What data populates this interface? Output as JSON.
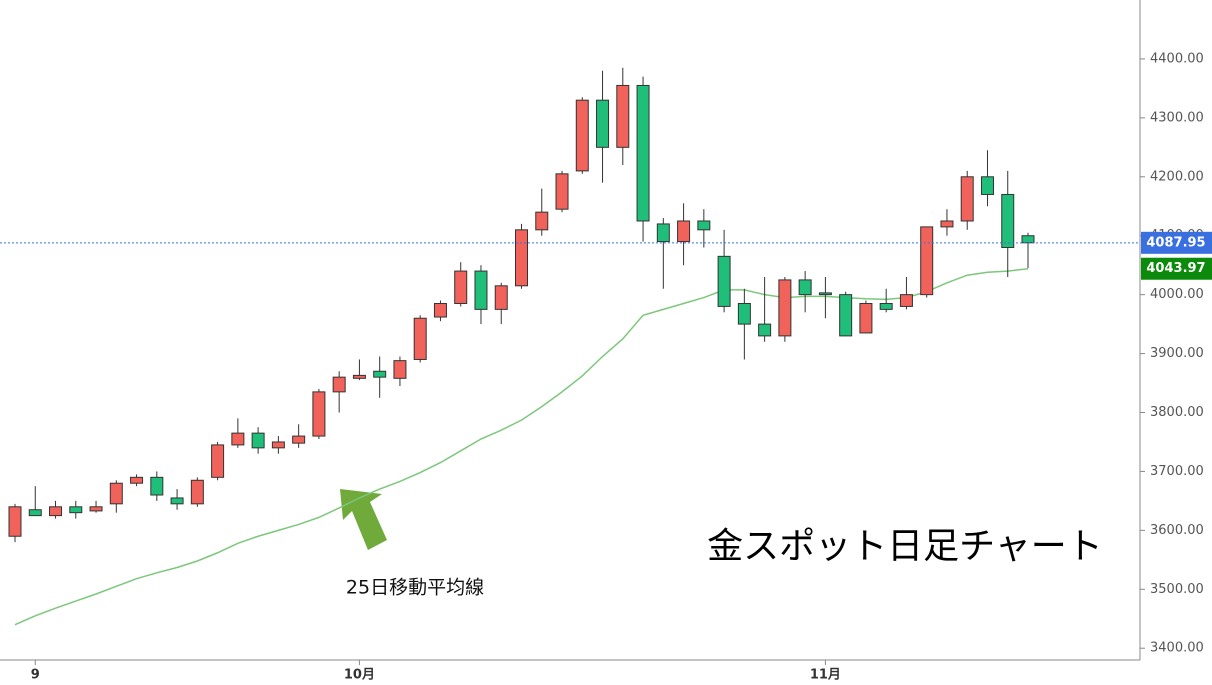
{
  "chart_data": {
    "type": "candlestick",
    "title": "金スポット日足チャート",
    "annotations": [
      "25日移動平均線"
    ],
    "categories": [
      null,
      "9",
      null,
      null,
      null,
      null,
      null,
      null,
      null,
      null,
      null,
      null,
      null,
      null,
      null,
      null,
      null,
      "10月",
      null,
      null,
      null,
      null,
      null,
      null,
      null,
      null,
      null,
      null,
      null,
      null,
      null,
      null,
      null,
      null,
      null,
      null,
      null,
      null,
      null,
      null,
      "11月",
      null,
      null,
      null,
      null,
      null,
      null,
      null,
      null,
      null,
      null
    ],
    "open": [
      3590,
      3635,
      3625,
      3640,
      3633,
      3645,
      3680,
      3690,
      3655,
      3645,
      3690,
      3745,
      3765,
      3740,
      3748,
      3760,
      3835,
      3858,
      3870,
      3858,
      3890,
      3962,
      3985,
      4040,
      3975,
      4015,
      4110,
      4145,
      4210,
      4330,
      4250,
      4355,
      4120,
      4090,
      4125,
      4065,
      3985,
      3950,
      3930,
      4025,
      4003,
      4000,
      3935,
      3985,
      3980,
      4000,
      4115,
      4125,
      4200,
      4170,
      4100
    ],
    "high": [
      3645,
      3675,
      3650,
      3650,
      3650,
      3685,
      3695,
      3700,
      3670,
      3690,
      3750,
      3790,
      3775,
      3760,
      3780,
      3840,
      3870,
      3890,
      3895,
      3895,
      3965,
      3990,
      4055,
      4050,
      4020,
      4120,
      4180,
      4210,
      4335,
      4380,
      4385,
      4370,
      4130,
      4155,
      4145,
      4110,
      4010,
      4030,
      4030,
      4040,
      4030,
      4005,
      3990,
      4010,
      4030,
      4115,
      4145,
      4210,
      4245,
      4210,
      4105
    ],
    "low": [
      3580,
      3625,
      3620,
      3620,
      3630,
      3630,
      3675,
      3650,
      3635,
      3640,
      3685,
      3740,
      3730,
      3730,
      3740,
      3755,
      3800,
      3855,
      3825,
      3845,
      3885,
      3955,
      3980,
      3950,
      3950,
      4010,
      4100,
      4140,
      4205,
      4190,
      4220,
      4090,
      4010,
      4050,
      4080,
      3970,
      3890,
      3920,
      3920,
      3970,
      3960,
      3930,
      3935,
      3970,
      3975,
      3995,
      4100,
      4110,
      4150,
      4030,
      4045
    ],
    "close": [
      3640,
      3625,
      3640,
      3630,
      3640,
      3680,
      3690,
      3660,
      3645,
      3685,
      3745,
      3765,
      3740,
      3750,
      3760,
      3835,
      3860,
      3863,
      3860,
      3888,
      3960,
      3985,
      4040,
      3975,
      4015,
      4110,
      4140,
      4205,
      4330,
      4250,
      4355,
      4125,
      4090,
      4125,
      4110,
      3980,
      3950,
      3930,
      4025,
      4000,
      4000,
      3930,
      3985,
      3975,
      4000,
      4115,
      4125,
      4200,
      4170,
      4080,
      4088
    ],
    "up_color": "#f0625a",
    "down_color": "#1fbf7a",
    "ma": {
      "color": "#7cc77c",
      "values": [
        3440,
        3455,
        3468,
        3480,
        3492,
        3505,
        3518,
        3528,
        3537,
        3548,
        3562,
        3578,
        3590,
        3600,
        3610,
        3622,
        3638,
        3655,
        3670,
        3683,
        3698,
        3715,
        3735,
        3755,
        3770,
        3787,
        3810,
        3835,
        3862,
        3895,
        3925,
        3965,
        3975,
        3985,
        3995,
        4008,
        4008,
        4000,
        3995,
        3997,
        3997,
        3995,
        3993,
        3992,
        3995,
        4005,
        4020,
        4033,
        4038,
        4040,
        4044
      ]
    },
    "price_labels": [
      {
        "value": 4087.95,
        "color": "#3a6fe0"
      },
      {
        "value": 4043.97,
        "color": "#0c8a0c"
      }
    ],
    "ylim": [
      3380,
      4500
    ],
    "yticks": [
      {
        "value": 3400,
        "label": "3400.00"
      },
      {
        "value": 3500,
        "label": "3500.00"
      },
      {
        "value": 3600,
        "label": "3600.00"
      },
      {
        "value": 3700,
        "label": "3700.00"
      },
      {
        "value": 3800,
        "label": "3800.00"
      },
      {
        "value": 3900,
        "label": "3900.00"
      },
      {
        "value": 4000,
        "label": "4000.00"
      },
      {
        "value": 4100,
        "label": "4100.00"
      },
      {
        "value": 4200,
        "label": "4200.00"
      },
      {
        "value": 4300,
        "label": "4300.00"
      },
      {
        "value": 4400,
        "label": "4400.00"
      }
    ]
  }
}
